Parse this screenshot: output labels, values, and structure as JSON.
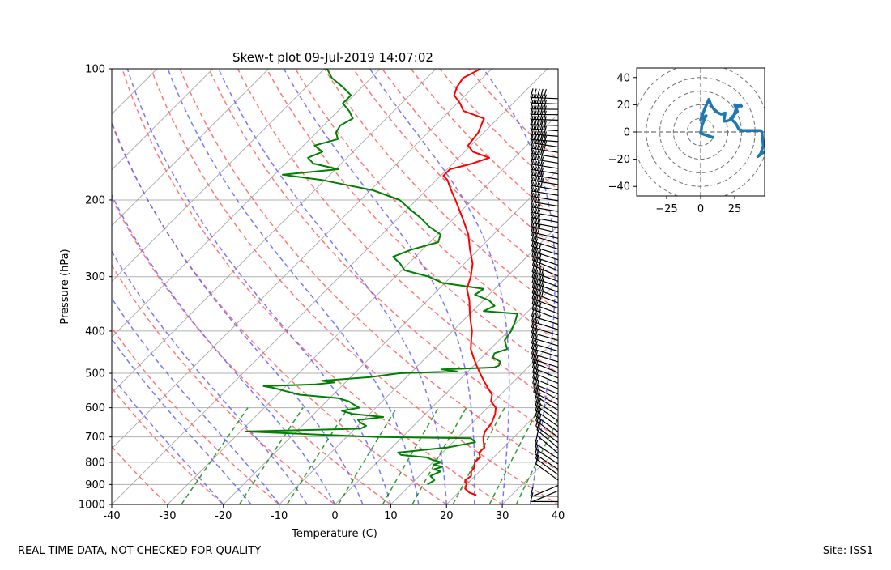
{
  "footer": {
    "left": "REAL TIME DATA, NOT CHECKED FOR QUALITY",
    "right": "Site: ISS1"
  },
  "colors": {
    "temperature": "#ff0000",
    "dewpoint": "#008000",
    "dry_adiabat": "#ff6060",
    "moist_adiabat": "#6060ff",
    "mixing_ratio": "#008000",
    "isotherm": "#b0b0b0",
    "hodograph": "#1f77b4",
    "barb": "#000000"
  },
  "chart_data": [
    {
      "type": "line",
      "subtype": "skew-t",
      "title": "Skew-t plot 09-Jul-2019 14:07:02",
      "xlabel": "Temperature (C)",
      "ylabel": "Pressure (hPa)",
      "xlim": [
        -40,
        40
      ],
      "ylim": [
        1000,
        100
      ],
      "yscale": "log",
      "grid": true,
      "x_ticks": [
        -40,
        -30,
        -20,
        -10,
        0,
        10,
        20,
        30,
        40
      ],
      "y_ticks": [
        100,
        200,
        300,
        400,
        500,
        600,
        700,
        800,
        900,
        1000
      ],
      "series": [
        {
          "key": "temperature",
          "pressure": [
            952,
            940,
            920,
            900,
            880,
            860,
            840,
            820,
            800,
            780,
            760,
            740,
            720,
            700,
            680,
            650,
            620,
            600,
            580,
            560,
            540,
            520,
            500,
            480,
            460,
            440,
            420,
            400,
            380,
            360,
            340,
            320,
            300,
            280,
            260,
            240,
            220,
            200,
            190,
            180,
            176,
            170,
            165,
            160,
            155,
            150,
            140,
            130,
            125,
            120,
            115,
            110,
            105,
            100
          ],
          "values": [
            23.7,
            22.0,
            20.5,
            20.0,
            19.0,
            19.3,
            18.5,
            18.3,
            17.5,
            17.6,
            16.5,
            16.6,
            15.5,
            14.5,
            13.8,
            13.5,
            12.5,
            11.5,
            9.5,
            8.5,
            6.5,
            4.5,
            2.5,
            0.5,
            -1.5,
            -3.5,
            -5.0,
            -6.5,
            -8.5,
            -10.5,
            -12.5,
            -15.0,
            -16.5,
            -18.5,
            -21.5,
            -24.5,
            -28.5,
            -33.0,
            -35.5,
            -38.0,
            -39.5,
            -39.5,
            -36.5,
            -34.5,
            -38.5,
            -40.5,
            -41.0,
            -42.5,
            -47.5,
            -49.5,
            -52.0,
            -53.0,
            -53.5,
            -52.0
          ]
        },
        {
          "key": "dewpoint",
          "pressure": [
            900,
            880,
            860,
            840,
            830,
            820,
            810,
            800,
            790,
            780,
            770,
            760,
            750,
            740,
            720,
            705,
            700,
            695,
            680,
            670,
            660,
            650,
            640,
            630,
            620,
            610,
            600,
            590,
            580,
            570,
            560,
            550,
            540,
            535,
            530,
            525,
            520,
            510,
            500,
            495,
            490,
            485,
            480,
            470,
            460,
            450,
            440,
            420,
            400,
            380,
            365,
            360,
            350,
            340,
            330,
            320,
            310,
            300,
            290,
            280,
            270,
            260,
            250,
            240,
            230,
            220,
            210,
            200,
            190,
            180,
            175,
            170,
            165,
            160,
            155,
            150,
            145,
            140,
            135,
            130,
            125,
            120,
            115,
            110,
            105,
            100
          ],
          "values": [
            13.0,
            13.5,
            12.0,
            13.0,
            11.5,
            12.5,
            10.5,
            11.5,
            9.5,
            8.0,
            3.0,
            2.0,
            6.0,
            10.0,
            14.0,
            12.5,
            -4.0,
            -11.0,
            -29.0,
            -9.0,
            -8.5,
            -10.0,
            -11.0,
            -7.0,
            -13.0,
            -15.5,
            -13.0,
            -14.5,
            -16.0,
            -18.5,
            -26.0,
            -29.0,
            -32.0,
            -34.0,
            -25.0,
            -22.0,
            -24.5,
            -16.5,
            -12.0,
            -2.0,
            -5.0,
            4.0,
            4.5,
            4.0,
            2.0,
            1.5,
            3.0,
            1.0,
            0.5,
            -0.5,
            -1.5,
            -8.0,
            -7.0,
            -9.0,
            -12.5,
            -12.0,
            -20.5,
            -24.0,
            -29.5,
            -31.5,
            -34.0,
            -32.0,
            -28.5,
            -29.5,
            -33.0,
            -36.0,
            -39.5,
            -43.0,
            -49.5,
            -60.5,
            -68.5,
            -59.5,
            -65.0,
            -67.0,
            -65.5,
            -68.0,
            -65.0,
            -66.5,
            -67.0,
            -66.0,
            -68.0,
            -70.5,
            -70.5,
            -73.5,
            -77.0,
            -79.5
          ]
        }
      ]
    },
    {
      "type": "line",
      "subtype": "hodograph",
      "xlim": [
        -47,
        47
      ],
      "ylim": [
        -47,
        47
      ],
      "x_ticks": [
        -25,
        0,
        25
      ],
      "y_ticks": [
        -40,
        -20,
        0,
        20,
        40
      ],
      "rings": [
        10,
        20,
        30,
        40,
        50
      ],
      "u": [
        9,
        0,
        1,
        4,
        0,
        3,
        6,
        8,
        11,
        15,
        18,
        17,
        19,
        22,
        24,
        26,
        29,
        30,
        25,
        27,
        22,
        26,
        28,
        30,
        32,
        36,
        40,
        44,
        45,
        46,
        44,
        42,
        46
      ],
      "v": [
        -4,
        -1,
        5,
        12,
        9,
        17,
        24,
        19,
        15,
        13,
        14,
        8,
        8,
        9,
        11,
        17,
        20,
        19,
        20,
        15,
        10,
        6,
        2,
        1,
        1,
        1,
        1,
        1,
        0,
        -10,
        -16,
        -18,
        -15
      ]
    }
  ]
}
